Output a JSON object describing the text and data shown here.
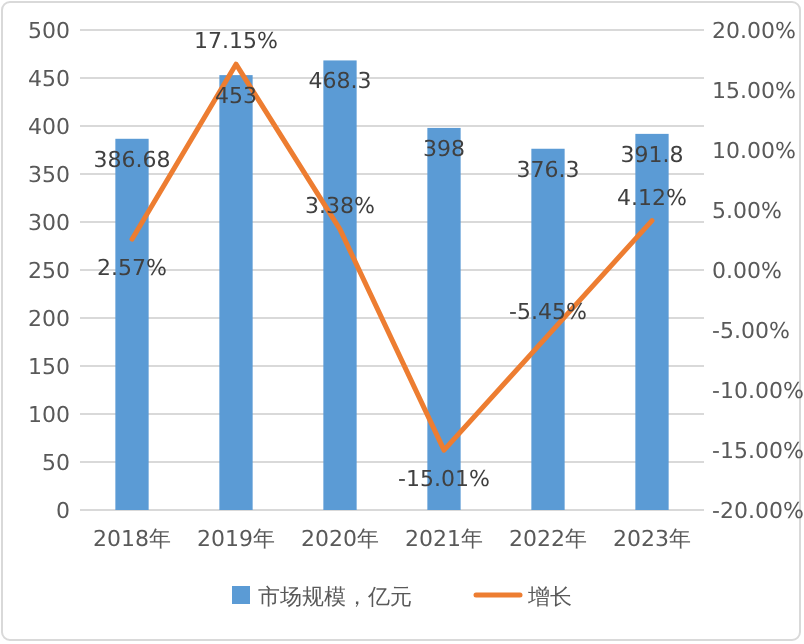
{
  "chart_data": {
    "type": "bar",
    "categories": [
      "2018年",
      "2019年",
      "2020年",
      "2021年",
      "2022年",
      "2023年"
    ],
    "series": [
      {
        "name": "市场规模，亿元",
        "color": "#5b9bd5",
        "values": [
          386.68,
          453,
          468.3,
          398,
          376.3,
          391.8
        ],
        "value_labels": [
          "386.68",
          "453",
          "468.3",
          "398",
          "376.3",
          "391.8"
        ]
      },
      {
        "name": "增长",
        "type": "line",
        "axis": "y2",
        "color": "#ed7d31",
        "values": [
          2.57,
          17.15,
          3.38,
          -15.01,
          -5.45,
          4.12
        ],
        "value_labels": [
          "2.57%",
          "17.15%",
          "3.38%",
          "-15.01%",
          "-5.45%",
          "4.12%"
        ]
      }
    ],
    "ylim": [
      0,
      500
    ],
    "yticks": [
      0,
      50,
      100,
      150,
      200,
      250,
      300,
      350,
      400,
      450,
      500
    ],
    "y2lim": [
      -20,
      20
    ],
    "y2ticks": [
      {
        "value": -20,
        "label": "-20.00%"
      },
      {
        "value": -15,
        "label": "-15.00%"
      },
      {
        "value": -10,
        "label": "-10.00%"
      },
      {
        "value": -5,
        "label": "-5.00%"
      },
      {
        "value": 0,
        "label": "0.00%"
      },
      {
        "value": 5,
        "label": "5.00%"
      },
      {
        "value": 10,
        "label": "10.00%"
      },
      {
        "value": 15,
        "label": "15.00%"
      },
      {
        "value": 20,
        "label": "20.00%"
      }
    ],
    "grid": "y",
    "legend": "bottom",
    "marker": "none",
    "line_style": "solid"
  }
}
